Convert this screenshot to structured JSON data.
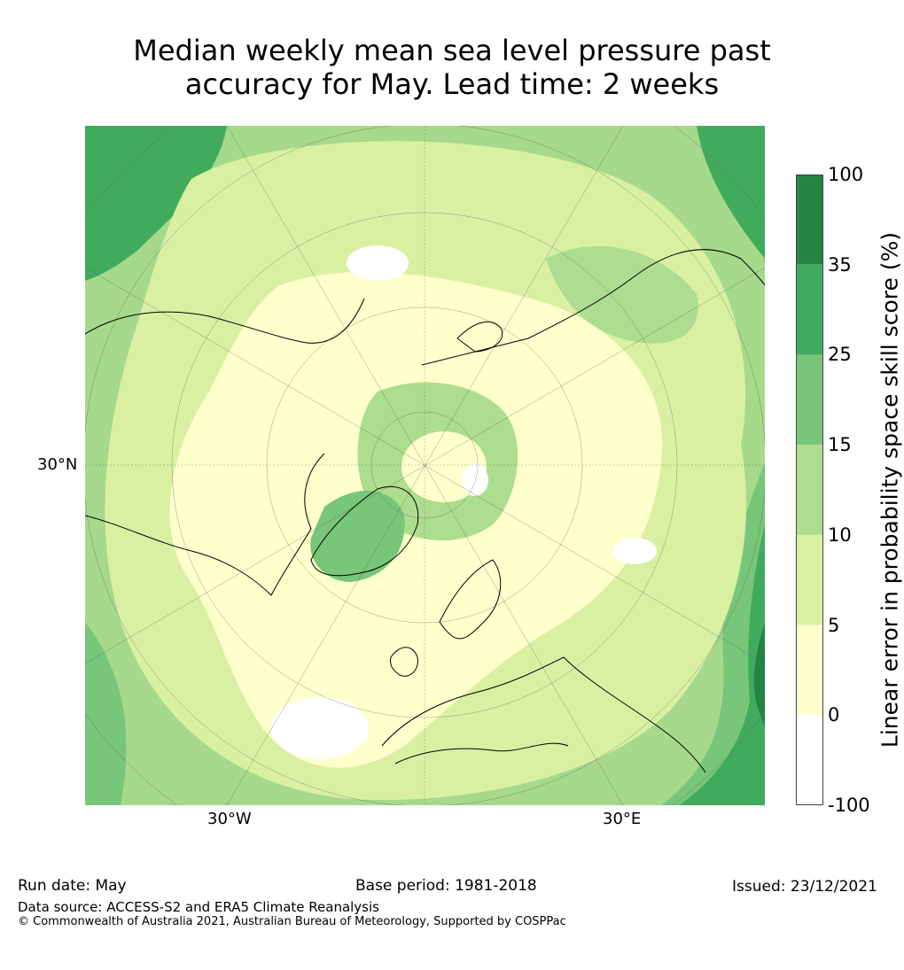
{
  "title": {
    "line1": "Median weekly mean sea level pressure past",
    "line2": "accuracy for May. Lead time: 2 weeks"
  },
  "map": {
    "projection": "north-polar-stereographic",
    "labels": {
      "lat": "30°N",
      "lon_west": "30°W",
      "lon_east": "30°E"
    },
    "colors": {
      "background": "#a6d98b",
      "white": "#ffffff",
      "pale_yellow": "#ffffcc",
      "light_green": "#d9f0a3",
      "mid_green": "#addd8e",
      "green": "#78c679",
      "dark_green": "#41ab5d",
      "darkest_green": "#238443",
      "coast": "#000000",
      "grid": "#555555"
    }
  },
  "colorbar": {
    "label": "Linear error in probability space skill score (%)",
    "ticks": [
      "100",
      "35",
      "25",
      "15",
      "10",
      "5",
      "0",
      "-100"
    ],
    "bands": [
      {
        "range": "35 to 100",
        "color": "#238443"
      },
      {
        "range": "25 to 35",
        "color": "#41ab5d"
      },
      {
        "range": "15 to 25",
        "color": "#78c679"
      },
      {
        "range": "10 to 15",
        "color": "#addd8e"
      },
      {
        "range": "5 to 10",
        "color": "#d9f0a3"
      },
      {
        "range": "0 to 5",
        "color": "#ffffcc"
      },
      {
        "range": "-100 to 0",
        "color": "#ffffff"
      }
    ]
  },
  "footer": {
    "run_date": "Run date: May",
    "base_period": "Base period: 1981-2018",
    "issued": "Issued: 23/12/2021",
    "data_source": "Data source: ACCESS-S2 and ERA5 Climate Reanalysis",
    "copyright": "© Commonwealth of Australia 2021, Australian Bureau of Meteorology, Supported by COSPPac"
  }
}
